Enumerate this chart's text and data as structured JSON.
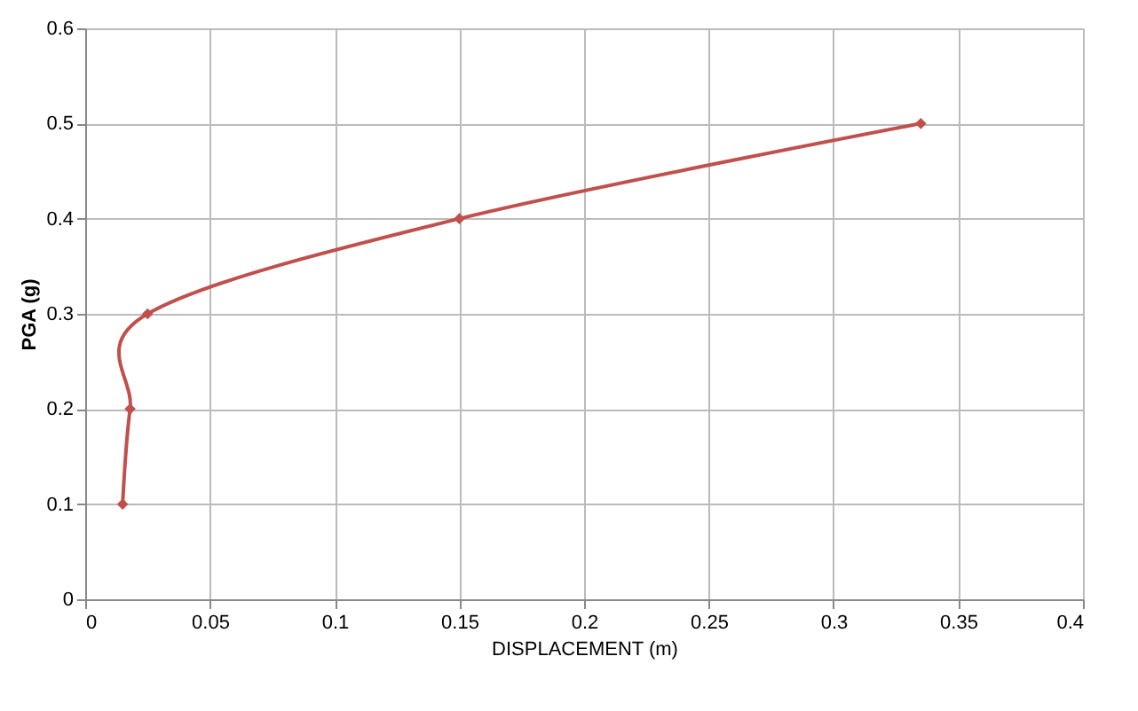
{
  "chart_data": {
    "type": "line",
    "xlabel": "DISPLACEMENT (m)",
    "ylabel": "PGA (g)",
    "x": [
      0.015,
      0.018,
      0.025,
      0.15,
      0.335
    ],
    "series": [
      {
        "color": "#c0504d",
        "values": [
          0.1,
          0.2,
          0.3,
          0.4,
          0.5
        ]
      }
    ],
    "xlim": [
      0,
      0.4
    ],
    "xticks": [
      0,
      0.05,
      0.1,
      0.15,
      0.2,
      0.25,
      0.3,
      0.35,
      0.4
    ],
    "ylim": [
      0,
      0.6
    ],
    "yticks": [
      0,
      0.1,
      0.2,
      0.3,
      0.4,
      0.5,
      0.6
    ],
    "grid": true,
    "marker": "diamond",
    "line_style": "solid"
  }
}
